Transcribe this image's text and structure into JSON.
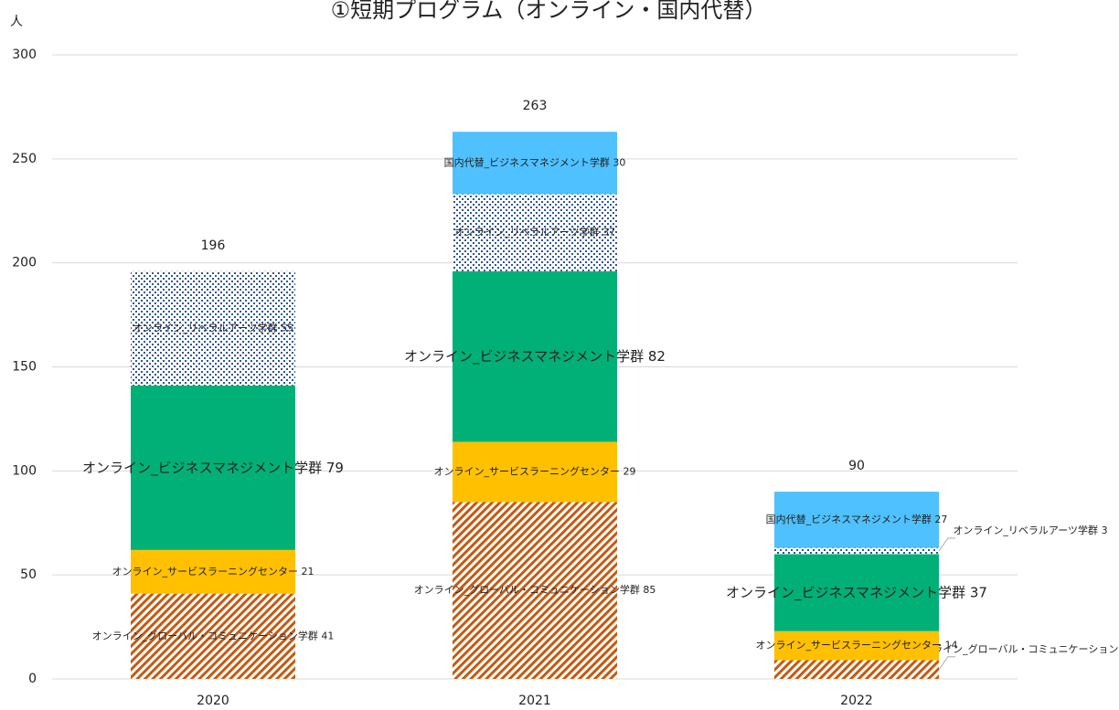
{
  "chart_data": {
    "type": "bar",
    "stacked": true,
    "title": "①短期プログラム（オンライン・国内代替）",
    "y_label": "人",
    "categories": [
      "2020",
      "2021",
      "2022"
    ],
    "series": [
      {
        "name": "オンライン_グローバル・コミュニケーション学群",
        "color": "#C55A11",
        "pattern": "hatch",
        "values": [
          41,
          85,
          9
        ]
      },
      {
        "name": "オンライン_サービスラーニングセンター",
        "color": "#FFC000",
        "values": [
          21,
          29,
          14
        ]
      },
      {
        "name": "オンライン_ビジネスマネジメント学群",
        "color": "#00B077",
        "values": [
          79,
          82,
          37
        ]
      },
      {
        "name": "オンライン_リベラルアーツ学群",
        "color": "#2F5597",
        "pattern": "dots",
        "values": [
          55,
          37,
          3
        ]
      },
      {
        "name": "国内代替_ビジネスマネジメント学群",
        "color": "#4FC1FF",
        "values": [
          null,
          30,
          27
        ]
      }
    ],
    "totals": [
      196,
      263,
      90
    ],
    "ylim": [
      0,
      300
    ],
    "yticks": [
      0,
      50,
      100,
      150,
      200,
      250,
      300
    ],
    "grid": true
  }
}
